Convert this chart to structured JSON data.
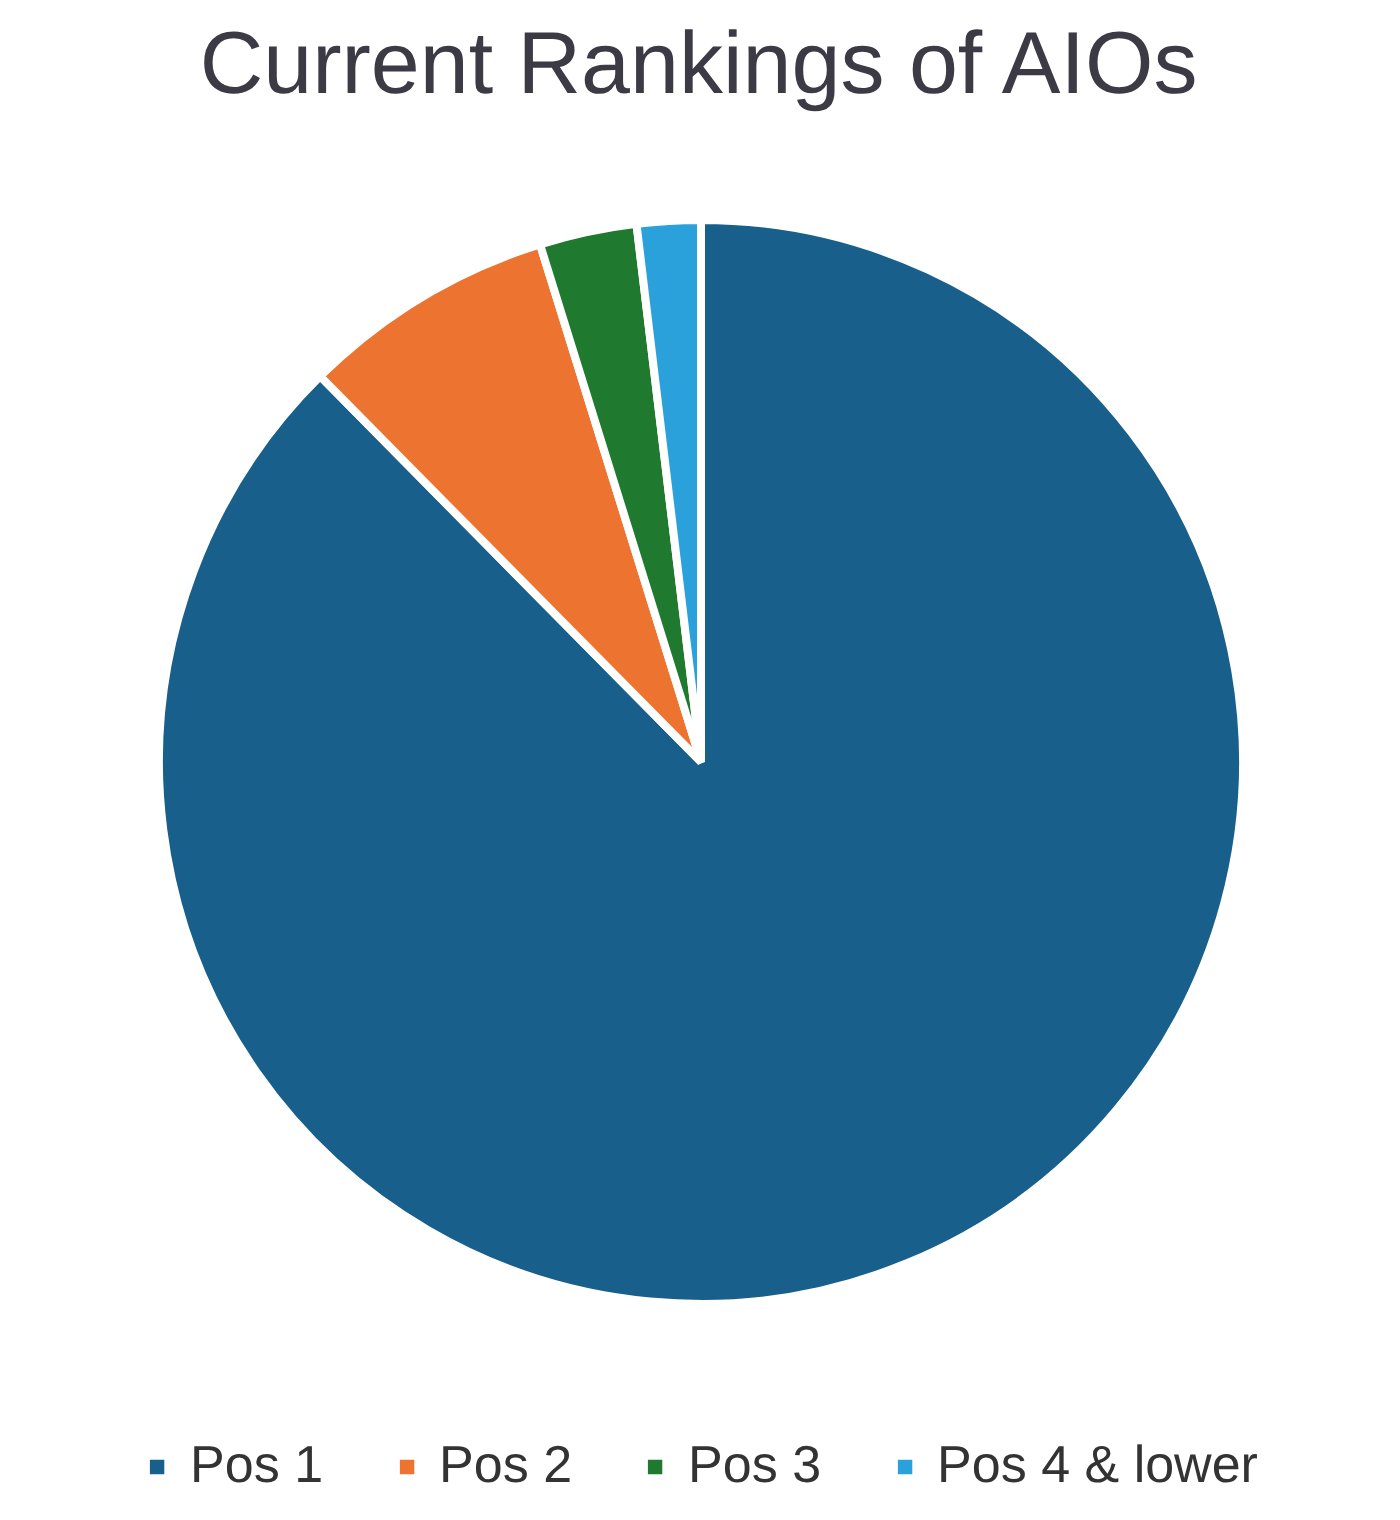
{
  "chart_data": {
    "type": "pie",
    "title": "Current Rankings of AIOs",
    "categories": [
      "Pos 1",
      "Pos 2",
      "Pos 3",
      "Pos 4 & lower"
    ],
    "values": [
      87.6,
      7.6,
      2.9,
      1.9
    ],
    "colors": [
      "#185f8b",
      "#ec7430",
      "#1f7a30",
      "#2ba1dc"
    ],
    "legend": "bottom"
  }
}
